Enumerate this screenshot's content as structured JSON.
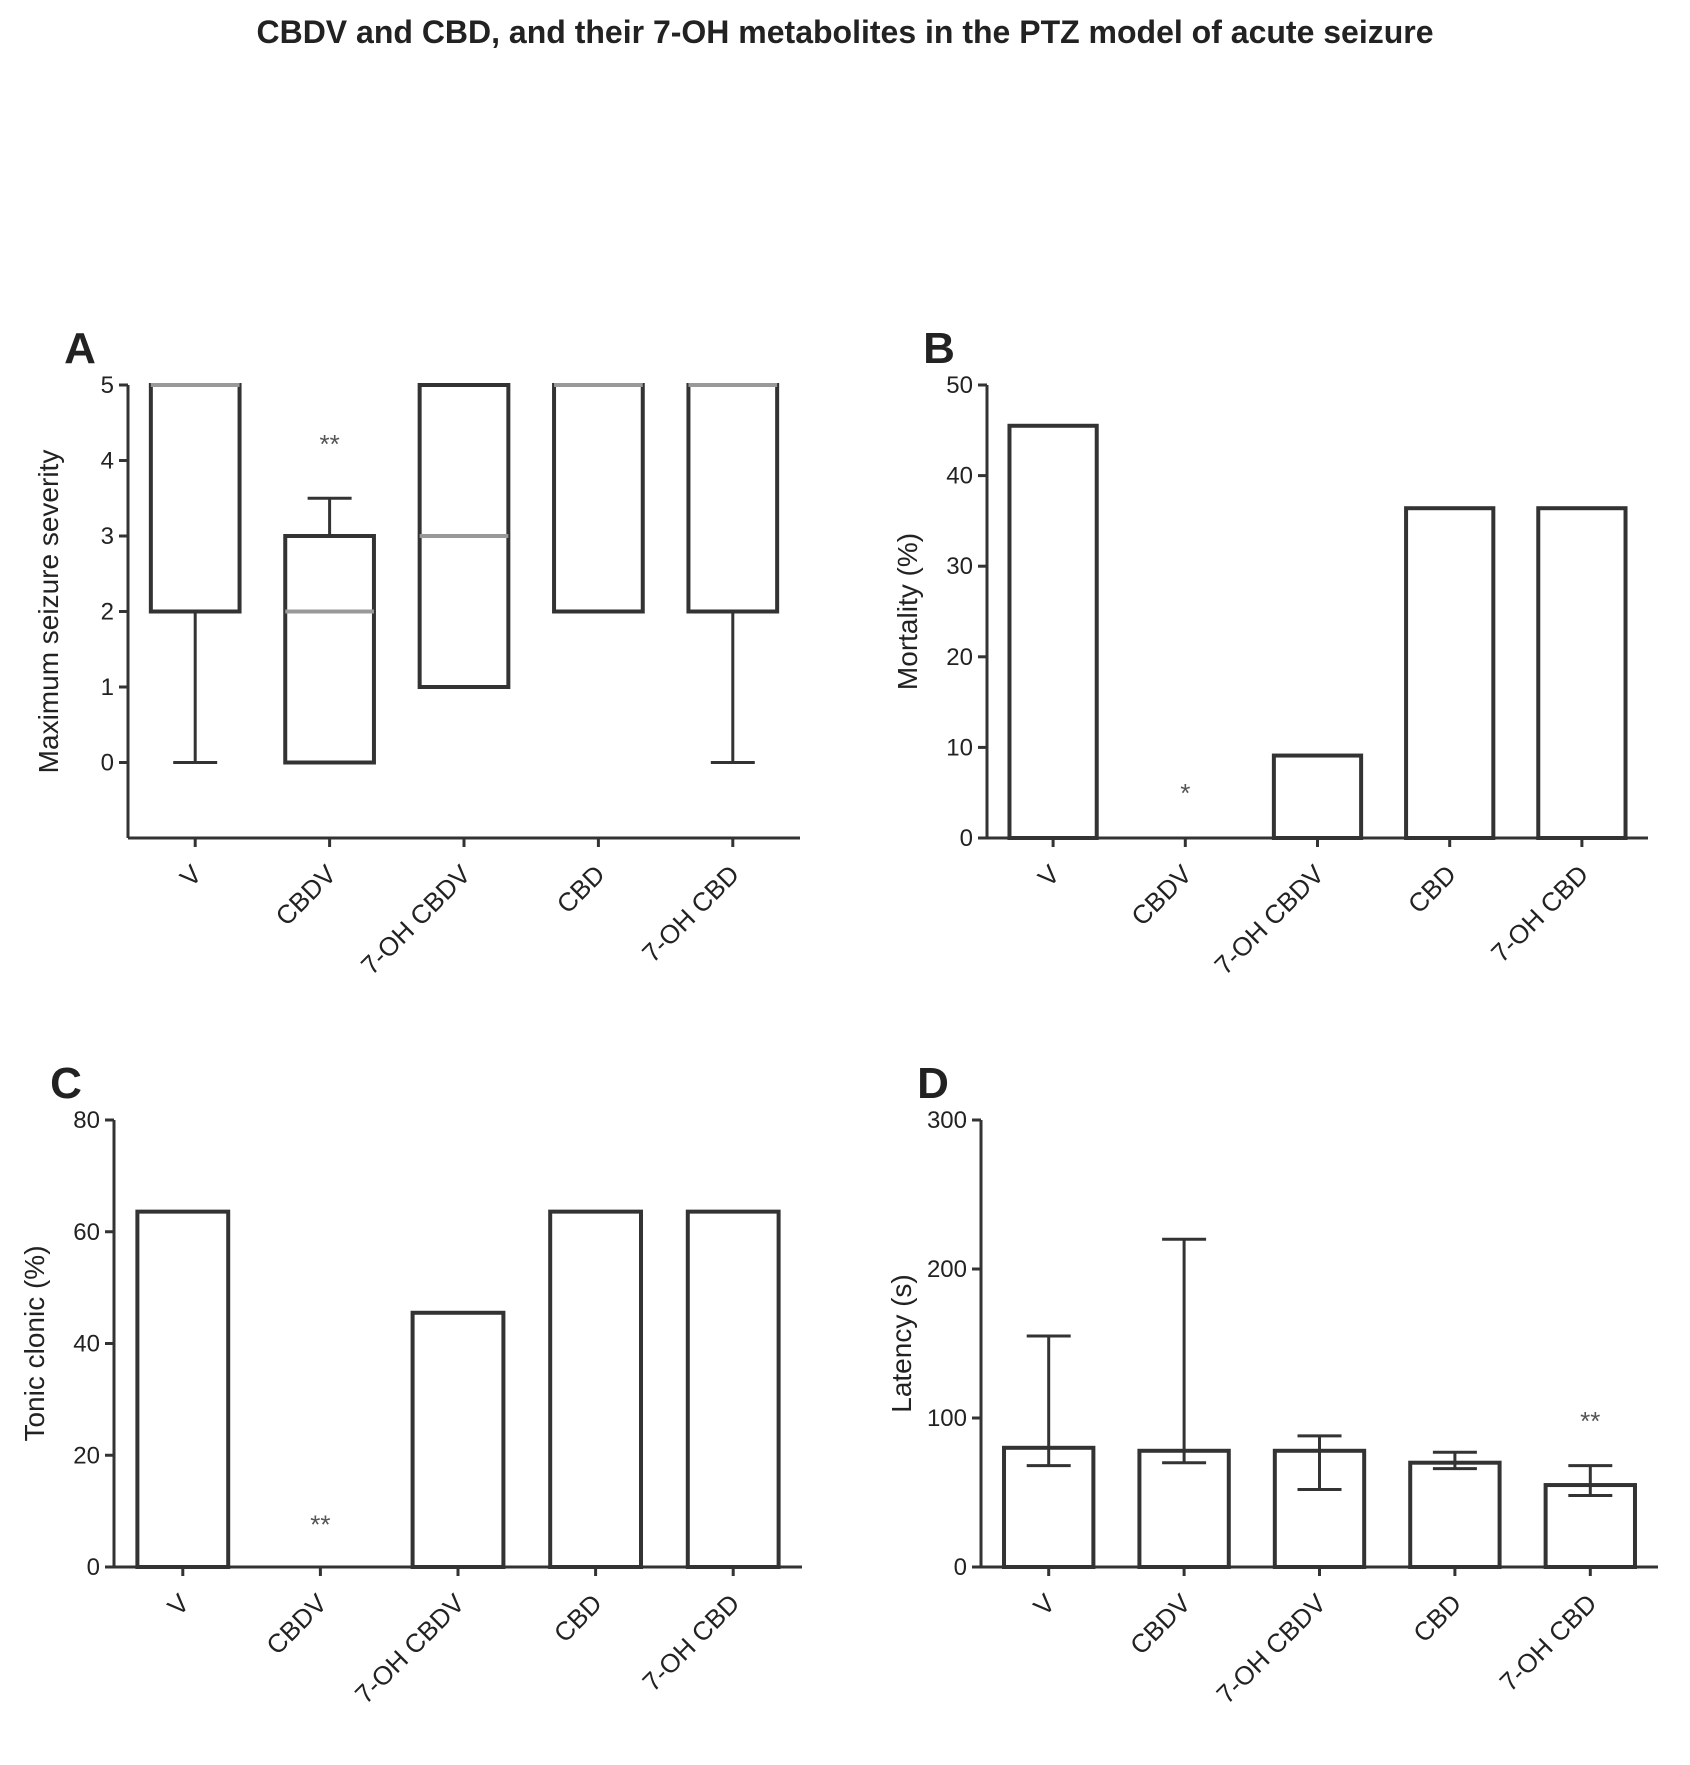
{
  "title": "CBDV and CBD, and their 7-OH metabolites in the PTZ model of acute seizure",
  "colors": {
    "ink": "#222222",
    "median": "#999999",
    "fill": "#ffffff",
    "stroke": "#333333"
  },
  "chart_data": [
    {
      "panel": "A",
      "type": "box",
      "title": "",
      "xlabel": "",
      "ylabel": "Maximum seizure severity",
      "ylim": [
        -1,
        5
      ],
      "yticks": [
        0,
        1,
        2,
        3,
        4,
        5
      ],
      "categories": [
        "V",
        "CBDV",
        "7-OH CBDV",
        "CBD",
        "7-OH CBD"
      ],
      "boxes": [
        {
          "min": 0,
          "q1": 2,
          "median": 5,
          "q3": 5,
          "max": 5
        },
        {
          "min": 0,
          "q1": 0,
          "median": 2,
          "q3": 3,
          "max": 3.5
        },
        {
          "min": 1,
          "q1": 1,
          "median": 3,
          "q3": 5,
          "max": 5
        },
        {
          "min": 2,
          "q1": 2,
          "median": 5,
          "q3": 5,
          "max": 5
        },
        {
          "min": 0,
          "q1": 2,
          "median": 5,
          "q3": 5,
          "max": 5
        }
      ],
      "annotations": [
        {
          "category": "CBDV",
          "text": "**",
          "y": 4.1
        }
      ]
    },
    {
      "panel": "B",
      "type": "bar",
      "title": "",
      "xlabel": "",
      "ylabel": "Mortality (%)",
      "ylim": [
        0,
        50
      ],
      "yticks": [
        0,
        10,
        20,
        30,
        40,
        50
      ],
      "categories": [
        "V",
        "CBDV",
        "7-OH CBDV",
        "CBD",
        "7-OH CBD"
      ],
      "values": [
        45.5,
        0,
        9.1,
        36.4,
        36.4
      ],
      "annotations": [
        {
          "category": "CBDV",
          "text": "*",
          "y": 4
        }
      ]
    },
    {
      "panel": "C",
      "type": "bar",
      "title": "",
      "xlabel": "",
      "ylabel": "Tonic clonic (%)",
      "ylim": [
        0,
        80
      ],
      "yticks": [
        0,
        20,
        40,
        60,
        80
      ],
      "categories": [
        "V",
        "CBDV",
        "7-OH CBDV",
        "CBD",
        "7-OH CBD"
      ],
      "values": [
        63.6,
        0,
        45.5,
        63.6,
        63.6
      ],
      "annotations": [
        {
          "category": "CBDV",
          "text": "**",
          "y": 6
        }
      ]
    },
    {
      "panel": "D",
      "type": "bar",
      "title": "",
      "xlabel": "",
      "ylabel": "Latency (s)",
      "ylim": [
        0,
        300
      ],
      "yticks": [
        0,
        100,
        200,
        300
      ],
      "categories": [
        "V",
        "CBDV",
        "7-OH CBDV",
        "CBD",
        "7-OH CBD"
      ],
      "values": [
        80,
        78,
        78,
        70,
        55
      ],
      "error_high": [
        155,
        220,
        88,
        77,
        68
      ],
      "error_low": [
        68,
        70,
        52,
        66,
        48
      ],
      "annotations": [
        {
          "category": "7-OH CBD",
          "text": "**",
          "y": 92
        }
      ]
    }
  ]
}
